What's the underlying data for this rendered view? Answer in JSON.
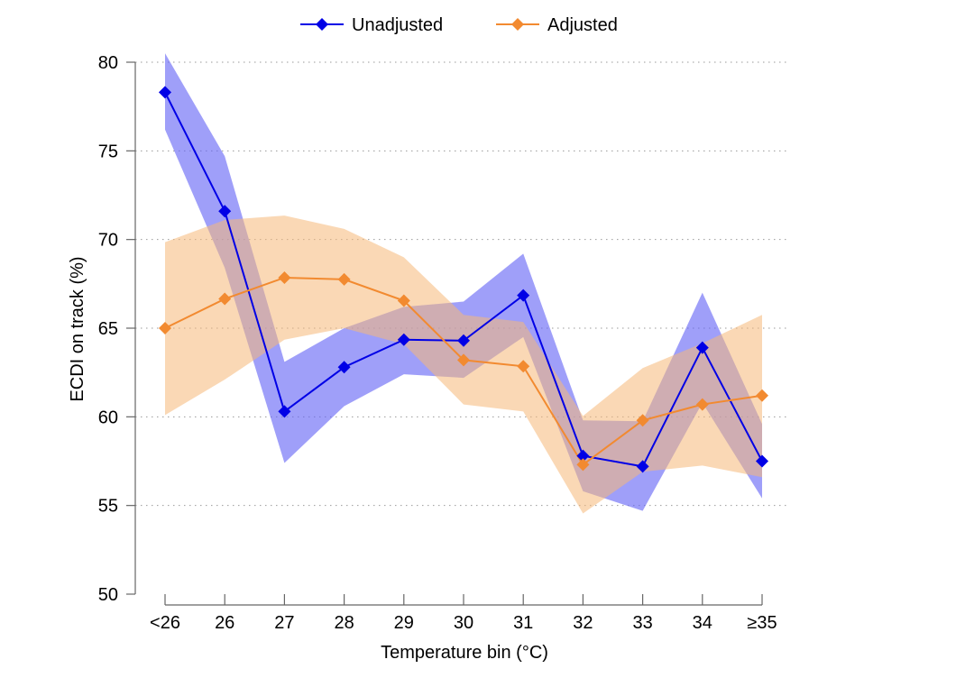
{
  "chart_data": {
    "type": "line",
    "title": "",
    "xlabel": "Temperature bin (°C)",
    "ylabel": "ECDI on track (%)",
    "categories": [
      "<26",
      "26",
      "27",
      "28",
      "29",
      "30",
      "31",
      "32",
      "33",
      "34",
      "≥35"
    ],
    "ylim": [
      50,
      80
    ],
    "yticks": [
      50,
      55,
      60,
      65,
      70,
      75,
      80
    ],
    "grid": "horizontal dotted",
    "legend_position": "top",
    "series": [
      {
        "name": "Unadjusted",
        "color": "#0000e6",
        "band_color": "#6464f5",
        "marker": "diamond",
        "values": [
          78.3,
          71.6,
          60.3,
          62.8,
          64.35,
          64.3,
          66.85,
          57.8,
          57.2,
          63.9,
          57.5
        ],
        "lower": [
          76.2,
          68.4,
          57.4,
          60.6,
          62.4,
          62.2,
          64.5,
          55.8,
          54.7,
          60.8,
          55.4
        ],
        "upper": [
          80.5,
          74.7,
          63.1,
          65.0,
          66.2,
          66.5,
          69.2,
          59.8,
          59.75,
          67.0,
          59.6
        ]
      },
      {
        "name": "Adjusted",
        "color": "#f28a30",
        "band_color": "#f5b879",
        "marker": "diamond",
        "values": [
          65.0,
          66.65,
          67.85,
          67.75,
          66.55,
          63.2,
          62.85,
          57.3,
          59.8,
          60.7,
          61.2
        ],
        "lower": [
          60.1,
          62.1,
          64.35,
          65.0,
          64.1,
          60.7,
          60.3,
          54.55,
          56.9,
          57.25,
          56.6
        ],
        "upper": [
          69.85,
          71.1,
          71.35,
          70.6,
          69.0,
          65.75,
          65.35,
          60.05,
          62.75,
          64.15,
          65.75
        ]
      }
    ]
  }
}
